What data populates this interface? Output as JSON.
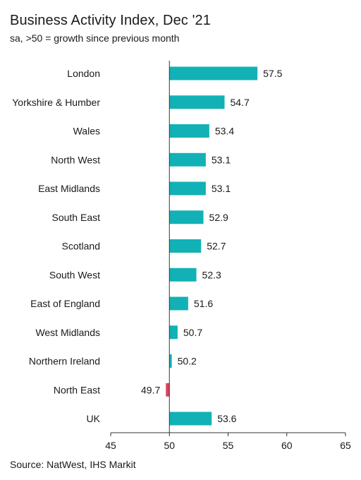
{
  "title": "Business Activity Index, Dec '21",
  "subtitle": "sa, >50 = growth since previous month",
  "source": "Source: NatWest, IHS Markit",
  "colors": {
    "growth": "#12b1b6",
    "contraction": "#d9435e",
    "axis": "#333333"
  },
  "chart_data": {
    "type": "bar",
    "orientation": "horizontal",
    "baseline": 50,
    "categories": [
      "London",
      "Yorkshire & Humber",
      "Wales",
      "North West",
      "East Midlands",
      "South East",
      "Scotland",
      "South West",
      "East of England",
      "West Midlands",
      "Northern Ireland",
      "North East",
      "UK"
    ],
    "values": [
      57.5,
      54.7,
      53.4,
      53.1,
      53.1,
      52.9,
      52.7,
      52.3,
      51.6,
      50.7,
      50.2,
      49.7,
      53.6
    ],
    "value_labels": [
      "57.5",
      "54.7",
      "53.4",
      "53.1",
      "53.1",
      "52.9",
      "52.7",
      "52.3",
      "51.6",
      "50.7",
      "50.2",
      "49.7",
      "53.6"
    ],
    "xlim": [
      45,
      65
    ],
    "xticks": [
      45,
      50,
      55,
      60,
      65
    ],
    "xtick_labels": [
      "45",
      "50",
      "55",
      "60",
      "65"
    ],
    "grid": false,
    "legend": "none"
  }
}
